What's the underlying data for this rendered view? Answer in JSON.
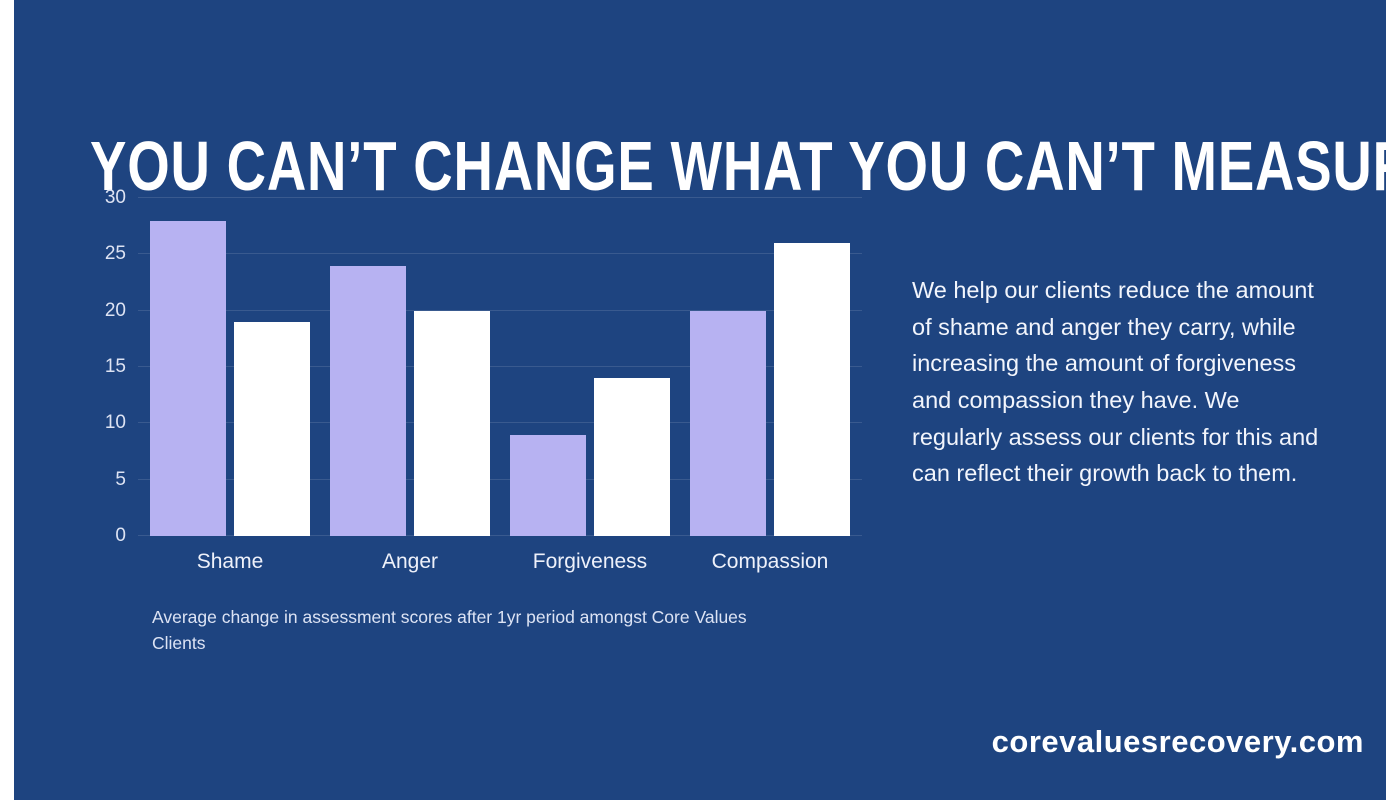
{
  "page": {
    "background_color": "#1e4480",
    "title": "YOU CAN’T CHANGE WHAT YOU CAN’T MEASURE",
    "paragraph": "We help our clients reduce the amount of shame and anger they carry, while increasing the amount of forgiveness and compassion they have. We regularly assess our clients for this and can reflect their growth back to them.",
    "website": "corevaluesrecovery.com"
  },
  "chart_data": {
    "type": "bar",
    "categories": [
      "Shame",
      "Anger",
      "Forgiveness",
      "Compassion"
    ],
    "series": [
      {
        "name": "series-1",
        "color": "#b7b2f2",
        "values": [
          28,
          24,
          9,
          20
        ]
      },
      {
        "name": "series-2",
        "color": "#ffffff",
        "values": [
          19,
          20,
          14,
          26
        ]
      }
    ],
    "ylim": [
      0,
      30
    ],
    "yticks": [
      0,
      5,
      10,
      15,
      20,
      25,
      30
    ],
    "grid": true,
    "legend": "none",
    "caption": "Average change in assessment scores after 1yr period amongst Core Values Clients"
  }
}
